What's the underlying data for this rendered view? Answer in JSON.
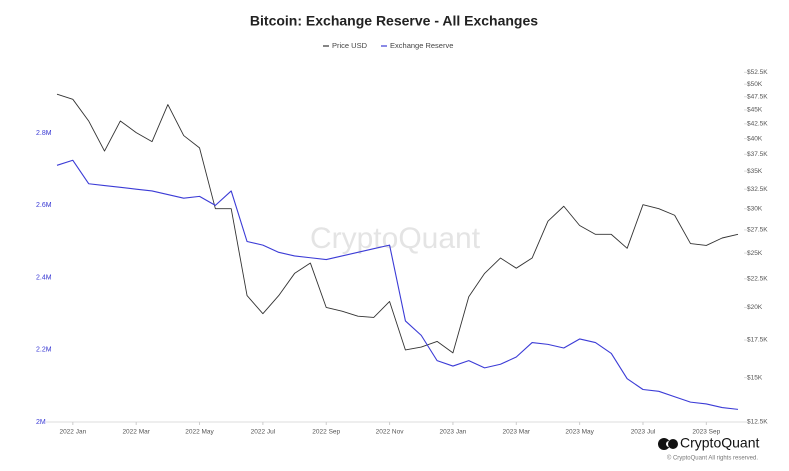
{
  "chart_data": {
    "type": "line",
    "title": "Bitcoin: Exchange Reserve - All Exchanges",
    "watermark": "CryptoQuant",
    "logo_text": "CryptoQuant",
    "copyright": "© CryptoQuant All rights reserved.",
    "categories": [
      null,
      "2022 Jan",
      null,
      null,
      null,
      "2022 Mar",
      null,
      null,
      null,
      "2022 May",
      null,
      null,
      null,
      "2022 Jul",
      null,
      null,
      null,
      "2022 Sep",
      null,
      null,
      null,
      "2022 Nov",
      null,
      null,
      null,
      "2023 Jan",
      null,
      null,
      null,
      "2023 Mar",
      null,
      null,
      null,
      "2023 May",
      null,
      null,
      null,
      "2023 Jul",
      null,
      null,
      null,
      "2023 Sep",
      null,
      null
    ],
    "series": [
      {
        "name": "Price USD",
        "color": "#333333",
        "axis": "y2",
        "values": [
          48000,
          47000,
          43000,
          38000,
          43000,
          41000,
          39500,
          46000,
          40500,
          38500,
          30000,
          30000,
          21000,
          19500,
          21000,
          23000,
          24000,
          20000,
          19700,
          19300,
          19200,
          20500,
          16800,
          17000,
          17400,
          16600,
          20900,
          23000,
          24500,
          23500,
          24500,
          28500,
          30300,
          28000,
          27000,
          27000,
          25500,
          30500,
          30000,
          29200,
          26000,
          25800,
          26600,
          27000
        ]
      },
      {
        "name": "Exchange Reserve",
        "color": "#3b3bd6",
        "values": [
          2711000,
          2725000,
          2660000,
          2655000,
          2650000,
          2645000,
          2640000,
          2630000,
          2620000,
          2625000,
          2600000,
          2640000,
          2500000,
          2490000,
          2470000,
          2460000,
          2455000,
          2450000,
          2460000,
          2470000,
          2480000,
          2490000,
          2280000,
          2240000,
          2170000,
          2155000,
          2170000,
          2150000,
          2160000,
          2180000,
          2220000,
          2215000,
          2205000,
          2230000,
          2220000,
          2190000,
          2120000,
          2090000,
          2085000,
          2070000,
          2055000,
          2050000,
          2040000,
          2035000
        ]
      }
    ],
    "ylim": [
      2000000,
      3000000
    ],
    "yticks": [
      {
        "value": 2000000,
        "label": "2M"
      },
      {
        "value": 2200000,
        "label": "2.2M"
      },
      {
        "value": 2400000,
        "label": "2.4M"
      },
      {
        "value": 2600000,
        "label": "2.6M"
      },
      {
        "value": 2800000,
        "label": "2.8M"
      }
    ],
    "y2lim": [
      12500,
      55000
    ],
    "y2log": true,
    "y2ticks": [
      {
        "value": 12500,
        "label": "$12.5K"
      },
      {
        "value": 15000,
        "label": "$15K"
      },
      {
        "value": 17500,
        "label": "$17.5K"
      },
      {
        "value": 20000,
        "label": "$20K"
      },
      {
        "value": 22500,
        "label": "$22.5K"
      },
      {
        "value": 25000,
        "label": "$25K"
      },
      {
        "value": 27500,
        "label": "$27.5K"
      },
      {
        "value": 30000,
        "label": "$30K"
      },
      {
        "value": 32500,
        "label": "$32.5K"
      },
      {
        "value": 35000,
        "label": "$35K"
      },
      {
        "value": 37500,
        "label": "$37.5K"
      },
      {
        "value": 40000,
        "label": "$40K"
      },
      {
        "value": 42500,
        "label": "$42.5K"
      },
      {
        "value": 45000,
        "label": "$45K"
      },
      {
        "value": 47500,
        "label": "$47.5K"
      },
      {
        "value": 50000,
        "label": "$50K"
      },
      {
        "value": 52500,
        "label": "$52.5K"
      }
    ]
  }
}
